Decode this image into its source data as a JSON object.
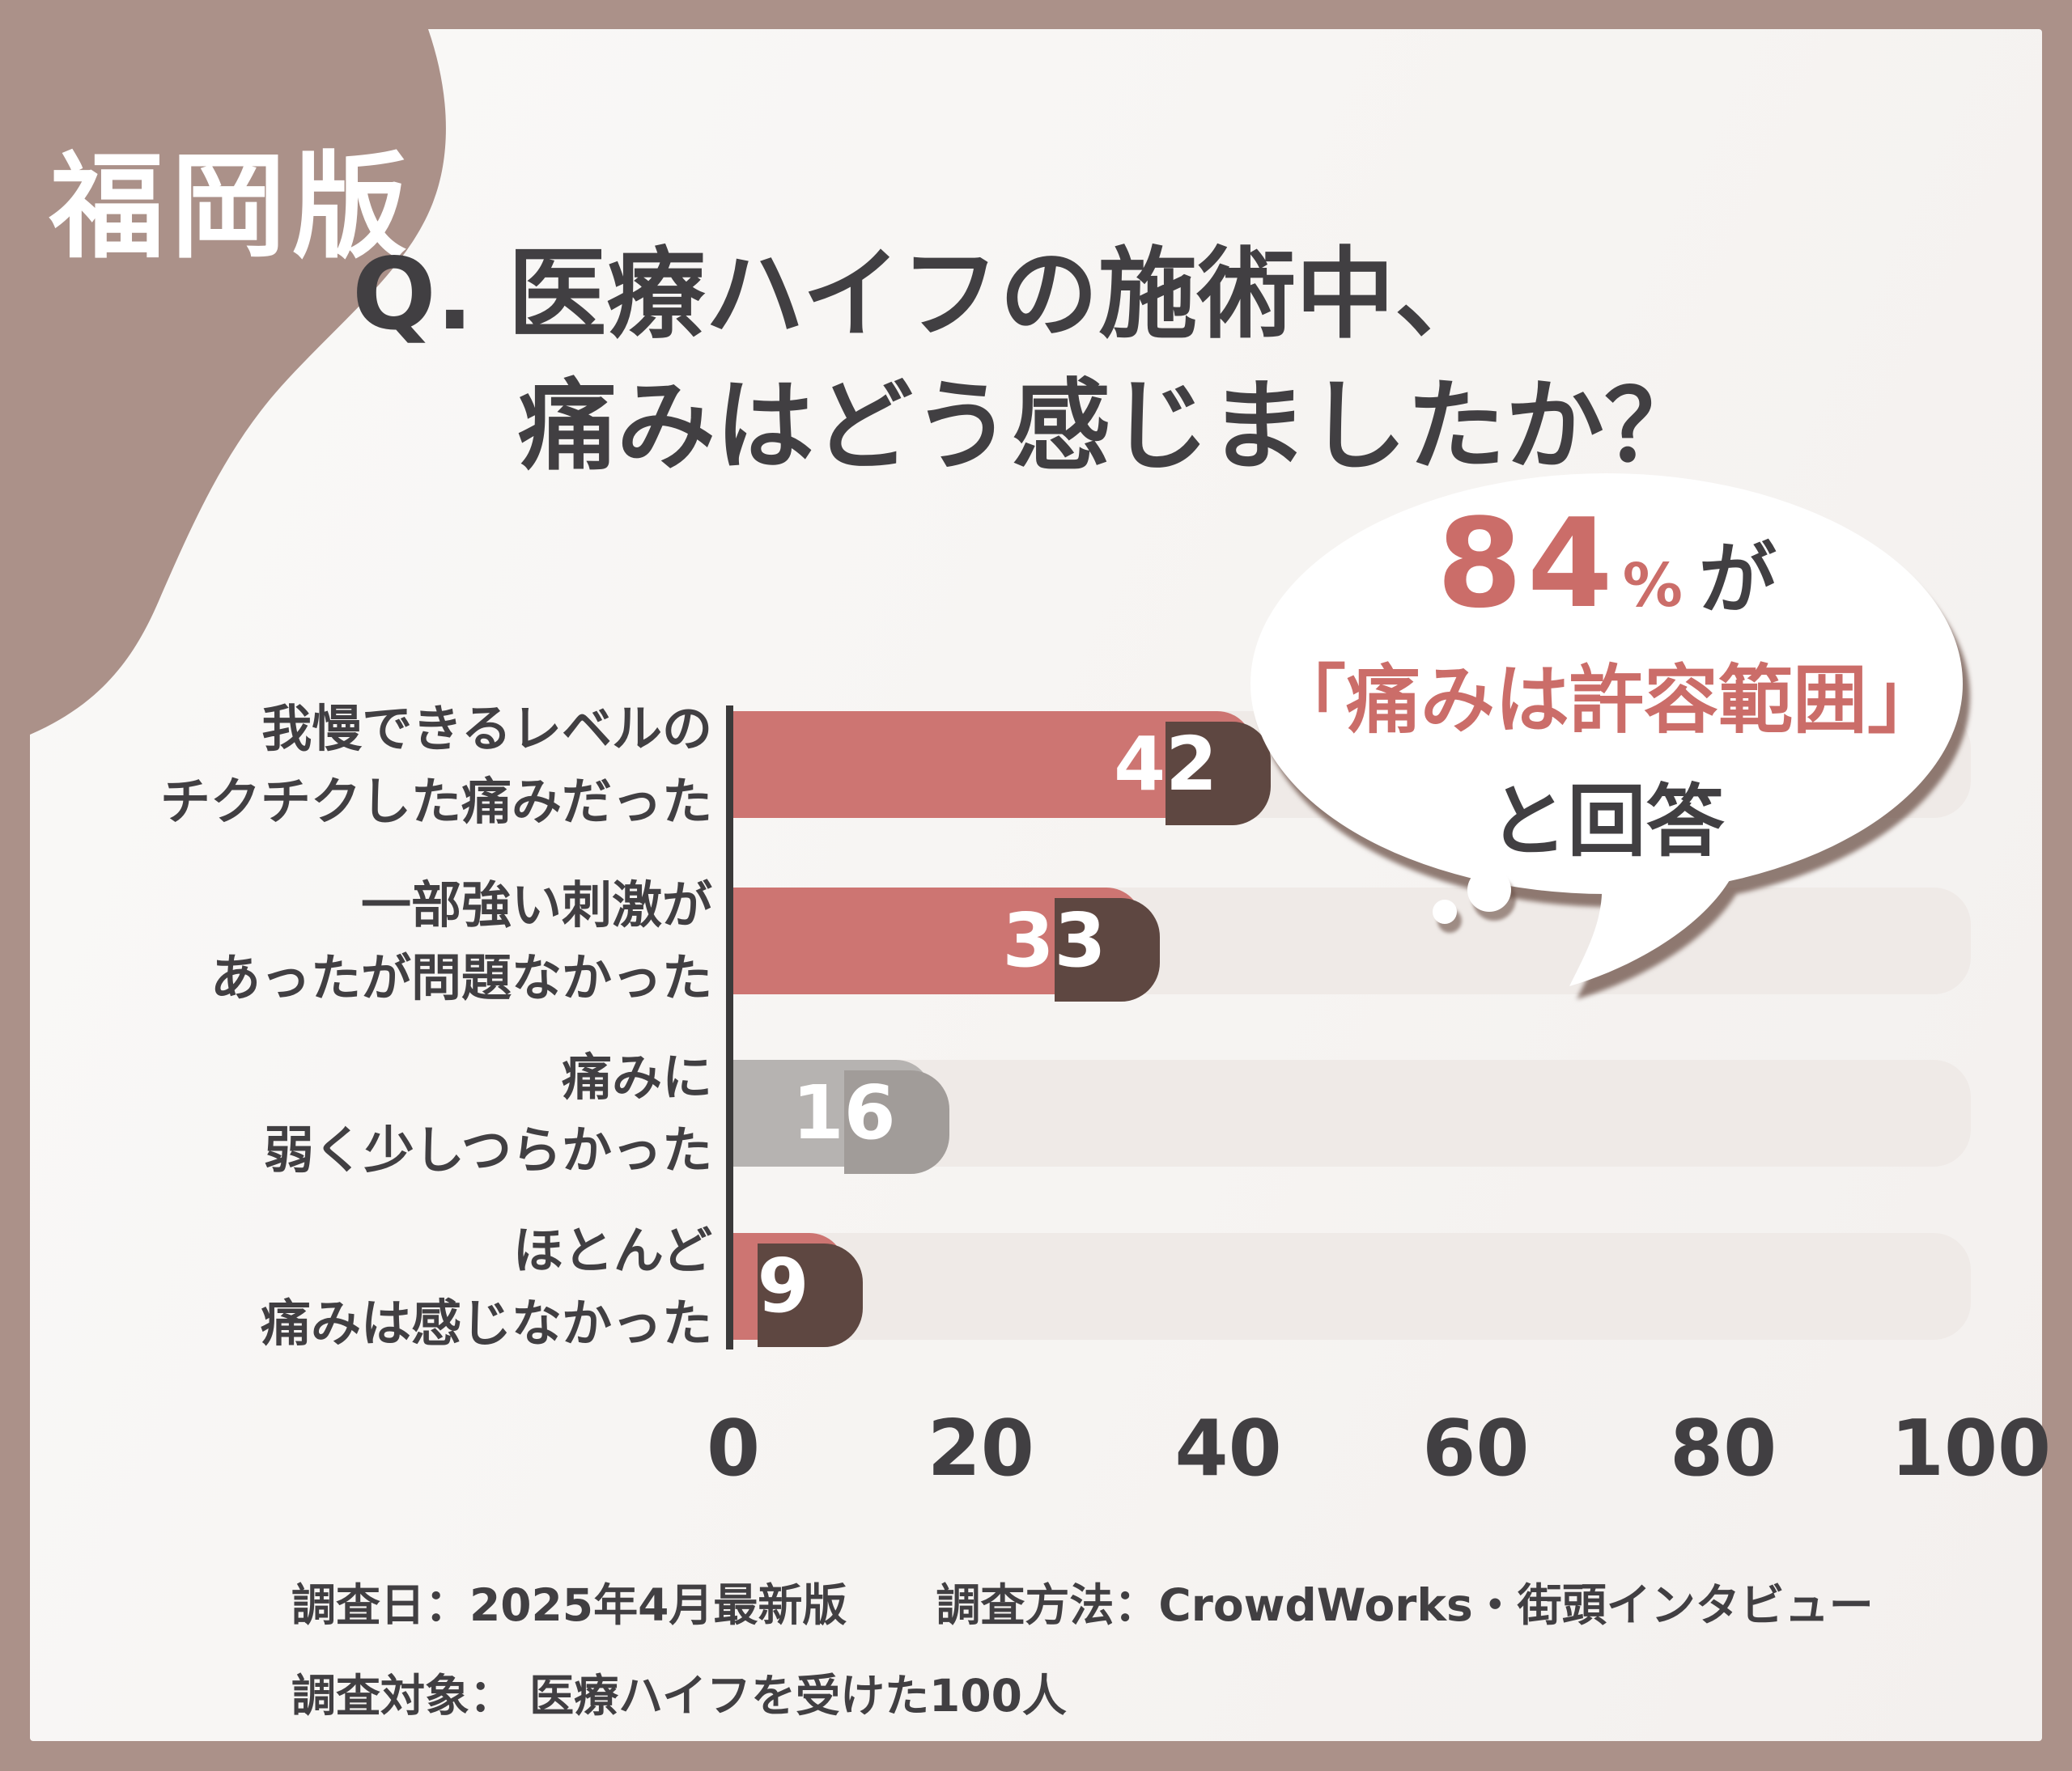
{
  "badge": {
    "label": "福岡版"
  },
  "title": {
    "line1": "Q. 医療ハイフの施術中、",
    "line2": "痛みはどう感じましたか？"
  },
  "bubble": {
    "stat": "84",
    "percent_sign": "%",
    "suffix": "が",
    "quote": "「痛みは許容範囲」",
    "answer": "と回答"
  },
  "chart_data": {
    "type": "bar",
    "orientation": "horizontal",
    "title": "Q. 医療ハイフの施術中、痛みはどう感じましたか？",
    "categories": [
      "我慢できるレベルの チクチクした痛みだった",
      "一部強い刺激が あったが問題なかった",
      "痛みに 弱く少しつらかった",
      "ほとんど 痛みは感じなかった"
    ],
    "values": [
      42,
      33,
      16,
      9
    ],
    "rows": [
      {
        "label_line1": "我慢できるレベルの",
        "label_line2": "チクチクした痛みだった",
        "value": 42,
        "color": "salmon"
      },
      {
        "label_line1": "一部強い刺激が",
        "label_line2": "あったが問題なかった",
        "value": 33,
        "color": "salmon"
      },
      {
        "label_line1": "痛みに",
        "label_line2": "弱く少しつらかった",
        "value": 16,
        "color": "gray"
      },
      {
        "label_line1": "ほとんど",
        "label_line2": "痛みは感じなかった",
        "value": 9,
        "color": "salmon"
      }
    ],
    "xlim": [
      0,
      100
    ],
    "x_ticks": [
      "0",
      "20",
      "40",
      "60",
      "80",
      "100"
    ],
    "grid": false,
    "legend": false,
    "annotation": "84%が「痛みは許容範囲」と回答"
  },
  "footer": {
    "line1": "調査日：2025年4月最新版　　調査方法：CrowdWorks・街頭インタビュー",
    "line2": "調査対象： 医療ハイフを受けた100人"
  },
  "colors": {
    "frame": "#ab9189",
    "ink": "#413f42",
    "salmon": "#cd7572",
    "salmon-text": "#cb6d69",
    "salmon-shadow": "#5e4741",
    "gray-bar": "#b6b3b1",
    "gray-shadow": "#a19c99",
    "track": "#efeae7",
    "track-shadow": "#e6e1de",
    "axis": "#3b3a3a",
    "bubble-bg": "#ffffff",
    "value-text": "#ffffff"
  }
}
